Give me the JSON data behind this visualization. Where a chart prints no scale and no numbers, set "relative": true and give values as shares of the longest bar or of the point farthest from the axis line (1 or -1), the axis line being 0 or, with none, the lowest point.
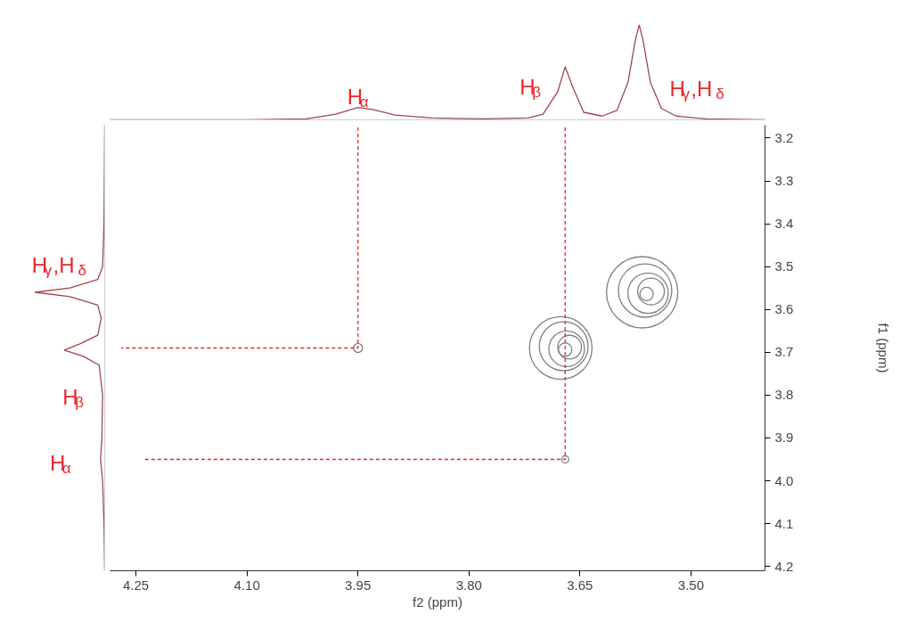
{
  "chart_data": [
    {
      "type": "line",
      "relative": true,
      "color": "#a0464a",
      "xlim": [
        4.285,
        3.4
      ],
      "tick_labels": false,
      "x": [
        4.285,
        4.1,
        4.02,
        3.98,
        3.95,
        3.93,
        3.9,
        3.85,
        3.78,
        3.72,
        3.7,
        3.68,
        3.67,
        3.66,
        3.645,
        3.62,
        3.6,
        3.585,
        3.575,
        3.57,
        3.565,
        3.555,
        3.54,
        3.52,
        3.48,
        3.4
      ],
      "values": [
        0,
        0,
        0.01,
        0.06,
        0.13,
        0.11,
        0.05,
        0.02,
        0.01,
        0.02,
        0.06,
        0.3,
        0.56,
        0.35,
        0.08,
        0.04,
        0.1,
        0.4,
        0.85,
        1.0,
        0.85,
        0.4,
        0.12,
        0.04,
        0.01,
        0
      ],
      "annotations": [
        "H$_{α}$",
        "H$_{β}$",
        "H$_{γ}$,H$_{δ}$"
      ]
    },
    {
      "type": "line",
      "relative": true,
      "orientation": "horizontal",
      "color": "#a0464a",
      "ylim": [
        4.21,
        3.17
      ],
      "tick_labels": false,
      "x": [
        3.17,
        3.4,
        3.5,
        3.53,
        3.55,
        3.56,
        3.57,
        3.59,
        3.62,
        3.66,
        3.68,
        3.695,
        3.71,
        3.73,
        3.8,
        3.9,
        3.95,
        4.0,
        4.1,
        4.21
      ],
      "values": [
        0,
        -0.01,
        -0.03,
        -0.1,
        -0.5,
        -1.0,
        -0.5,
        -0.1,
        -0.05,
        -0.1,
        -0.35,
        -0.58,
        -0.3,
        -0.08,
        -0.03,
        -0.04,
        -0.06,
        -0.03,
        -0.01,
        0
      ],
      "annotations": [
        "H$_{γ}$,H$_{δ}$",
        "H$_{β}$",
        "H$_{α}$"
      ]
    },
    {
      "type": "bubble",
      "xlabel": "f2 (ppm)",
      "ylabel": "f1 (ppm)",
      "xlim": [
        4.285,
        3.4
      ],
      "ylim": [
        4.21,
        3.17
      ],
      "grid": false,
      "xticks": [
        4.25,
        {
          "value": 4.1,
          "label": "4.10"
        },
        3.95,
        {
          "value": 3.8,
          "label": "3.80"
        },
        3.65,
        {
          "value": 3.5,
          "label": "3.50"
        }
      ],
      "yticks": [
        3.2,
        3.3,
        3.4,
        3.5,
        3.6,
        3.7,
        3.8,
        3.9,
        {
          "value": 4,
          "label": "4.0"
        },
        4.1,
        4.2
      ],
      "series": [
        {
          "type": "bubble",
          "color": "#808080",
          "x": [
            3.676,
            3.672,
            3.668,
            3.664,
            3.67,
            3.566,
            3.562,
            3.558,
            3.554,
            3.56,
            3.95,
            3.67
          ],
          "values": [
            3.69,
            3.686,
            3.692,
            3.688,
            3.694,
            3.56,
            3.556,
            3.562,
            3.558,
            3.564,
            3.69,
            3.95
          ],
          "sizes": [
            0.77,
            0.47,
            0.25,
            0.11,
            0.035,
            1.0,
            0.56,
            0.32,
            0.14,
            0.035,
            0.016,
            0.01
          ]
        },
        {
          "type": "line",
          "color": "#e8262a",
          "line_style": "dashed",
          "x": [
            3.95,
            3.95,
            4.27
          ],
          "values": [
            3.175,
            3.69,
            3.69
          ]
        },
        {
          "type": "line",
          "color": "#e8262a",
          "line_style": "dashed",
          "x": [
            3.67,
            3.67,
            4.24
          ],
          "values": [
            3.175,
            3.95,
            3.95
          ]
        }
      ]
    }
  ]
}
